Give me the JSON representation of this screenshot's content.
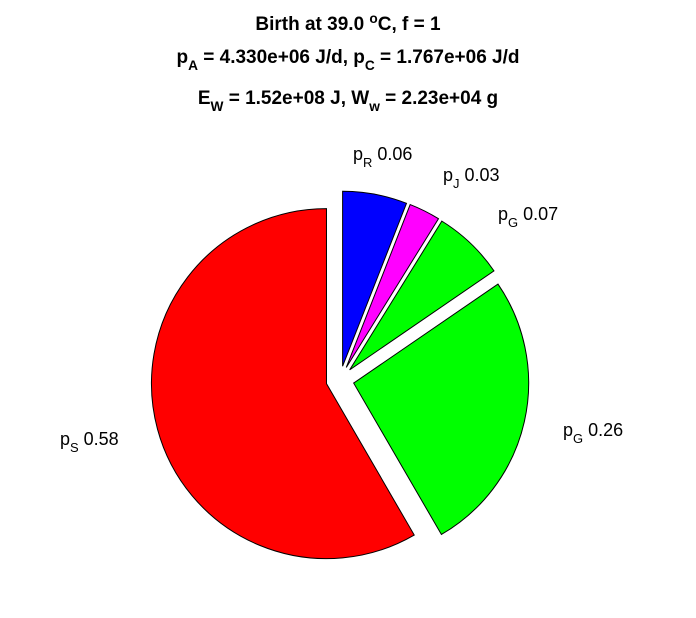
{
  "title": {
    "line1": {
      "text": "Birth at 39.0 ",
      "sup": "o",
      "tail": "C, f = 1"
    },
    "line2": {
      "a_base": "p",
      "a_sub": "A",
      "a_val": " = 4.330e+06 J/d, ",
      "c_base": "p",
      "c_sub": "C",
      "c_val": " = 1.767e+06 J/d"
    },
    "line3": {
      "e_base": "E",
      "e_sub": "W",
      "e_val": " = 1.52e+08 J, ",
      "w_base": "W",
      "w_sub": "w",
      "w_val": " = 2.23e+04 g"
    }
  },
  "chart_data": {
    "type": "pie",
    "exploded": true,
    "start": "top, clockwise",
    "slices": [
      {
        "base": "p",
        "sub": "R",
        "value": "0.06",
        "fraction": 0.0595,
        "color": "#0000ff"
      },
      {
        "base": "p",
        "sub": "J",
        "value": "0.03",
        "fraction": 0.0288,
        "color": "#ff00ff"
      },
      {
        "base": "p",
        "sub": "G",
        "value": "0.07",
        "fraction": 0.066,
        "color": "#00ff00"
      },
      {
        "base": "p",
        "sub": "G",
        "value": "0.26",
        "fraction": 0.2621,
        "color": "#00ff00"
      },
      {
        "base": "p",
        "sub": "S",
        "value": "0.58",
        "fraction": 0.5836,
        "color": "#ff0000"
      }
    ]
  }
}
